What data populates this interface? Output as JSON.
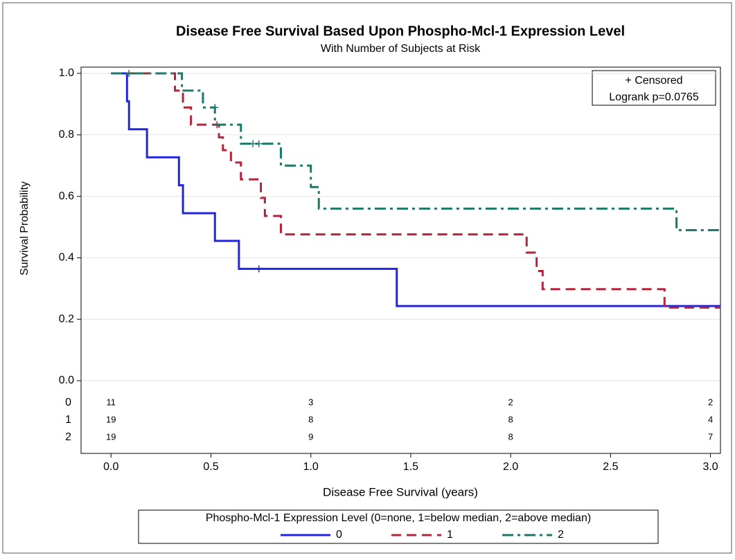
{
  "chart_data": {
    "type": "km",
    "title": "Disease Free Survival Based Upon Phospho-Mcl-1 Expression Level",
    "subtitle": "With Number of Subjects at Risk",
    "x_label": "Disease Free Survival (years)",
    "y_label": "Survival Probability",
    "xlim": [
      -0.15,
      3.05
    ],
    "ylim": [
      0,
      1
    ],
    "xticks": [
      {
        "value": 0,
        "label": "0.0"
      },
      0.5,
      {
        "value": 1,
        "label": "1.0"
      },
      1.5,
      {
        "value": 2,
        "label": "2.0"
      },
      2.5,
      {
        "value": 3,
        "label": "3.0"
      }
    ],
    "yticks": [
      {
        "value": 0,
        "label": "0.0"
      },
      0.2,
      0.4,
      0.6,
      0.8,
      {
        "value": 1,
        "label": "1.0"
      }
    ],
    "grid": true,
    "inset": [
      "+ Censored",
      "Logrank p=0.0765"
    ],
    "legend_title": "Phospho-Mcl-1 Expression Level (0=none, 1=below median, 2=above median)",
    "series": [
      {
        "name": "0",
        "color": "#2323e8",
        "dash": "",
        "x": [
          0,
          0.08,
          0.09,
          0.18,
          0.34,
          0.36,
          0.52,
          0.64,
          1.43
        ],
        "values": [
          1,
          0.909,
          0.818,
          0.727,
          0.636,
          0.545,
          0.455,
          0.364,
          0.243
        ],
        "censored_x": [
          0.74
        ],
        "censored_values": [
          0.364
        ],
        "at_risk_x": [
          0,
          1,
          2,
          3
        ],
        "at_risk": [
          11,
          3,
          2,
          2
        ]
      },
      {
        "name": "1",
        "color": "#b5233a",
        "dash": "14,8",
        "x": [
          0,
          0.32,
          0.36,
          0.4,
          0.54,
          0.56,
          0.6,
          0.65,
          0.75,
          0.77,
          0.85,
          2.08,
          2.13,
          2.16,
          2.77
        ],
        "values": [
          1,
          0.944,
          0.889,
          0.833,
          0.792,
          0.75,
          0.71,
          0.655,
          0.595,
          0.536,
          0.476,
          0.417,
          0.357,
          0.298,
          0.238
        ],
        "censored_x": [
          0.53
        ],
        "censored_values": [
          0.833
        ],
        "at_risk_x": [
          0,
          1,
          2,
          3
        ],
        "at_risk": [
          19,
          8,
          8,
          4
        ]
      },
      {
        "name": "2",
        "color": "#187a6a",
        "dash": "16,6,4,6",
        "x": [
          0,
          0.355,
          0.46,
          0.52,
          0.65,
          0.85,
          1.0,
          1.04,
          2.83
        ],
        "values": [
          1,
          0.944,
          0.889,
          0.833,
          0.771,
          0.7,
          0.63,
          0.56,
          0.49
        ],
        "censored_x": [
          0.09,
          0.52,
          0.71,
          0.74
        ],
        "censored_values": [
          1,
          0.889,
          0.771,
          0.771
        ],
        "at_risk_x": [
          0,
          1,
          2,
          3
        ],
        "at_risk": [
          19,
          9,
          8,
          7
        ]
      }
    ]
  }
}
